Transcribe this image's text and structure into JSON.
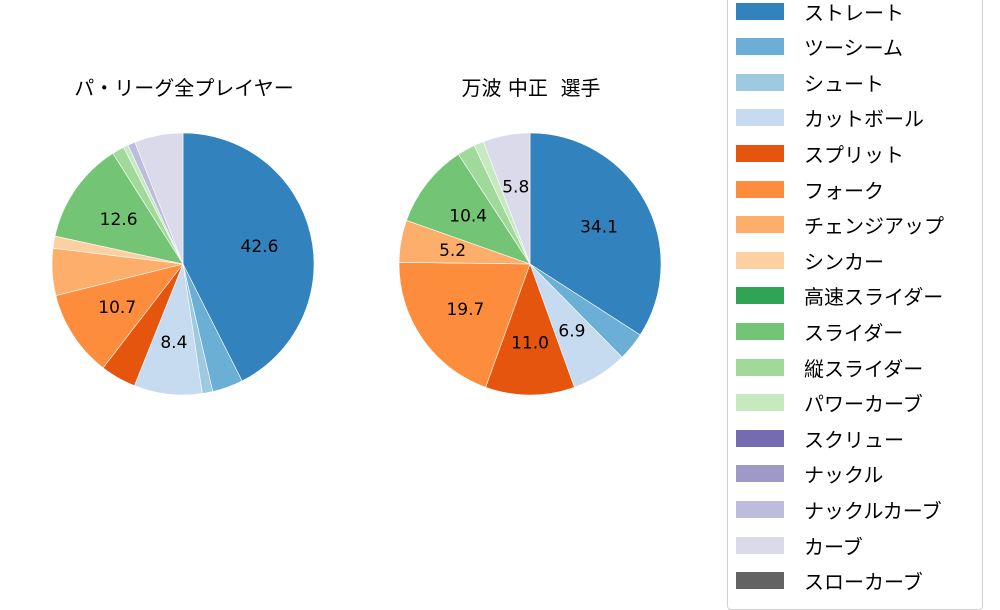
{
  "chart_data": [
    {
      "type": "pie",
      "title": "パ・リーグ全プレイヤー",
      "start_angle": "top, clockwise",
      "categories": [
        "ストレート",
        "ツーシーム",
        "シュート",
        "カットボール",
        "スプリット",
        "フォーク",
        "チェンジアップ",
        "シンカー",
        "スライダー",
        "縦スライダー",
        "パワーカーブ",
        "ナックルカーブ",
        "カーブ"
      ],
      "values": [
        42.6,
        3.8,
        1.3,
        8.4,
        4.4,
        10.7,
        5.8,
        1.5,
        12.6,
        1.5,
        0.6,
        0.9,
        6.0
      ],
      "labels_shown": [
        "42.6",
        "",
        "",
        "8.4",
        "",
        "10.7",
        "",
        "",
        "12.6",
        "",
        "",
        "",
        ""
      ]
    },
    {
      "type": "pie",
      "title": "万波 中正  選手",
      "start_angle": "top, clockwise",
      "categories": [
        "ストレート",
        "ツーシーム",
        "カットボール",
        "スプリット",
        "フォーク",
        "チェンジアップ",
        "スライダー",
        "縦スライダー",
        "パワーカーブ",
        "カーブ"
      ],
      "values": [
        34.1,
        3.5,
        6.9,
        11.0,
        19.7,
        5.2,
        10.4,
        2.2,
        1.2,
        5.8
      ],
      "labels_shown": [
        "34.1",
        "",
        "6.9",
        "11.0",
        "19.7",
        "5.2",
        "10.4",
        "",
        "",
        "5.8"
      ]
    }
  ],
  "colors": {
    "ストレート": "#3182bd",
    "ツーシーム": "#6baed6",
    "シュート": "#9ecae1",
    "カットボール": "#c6dbef",
    "スプリット": "#e6550d",
    "フォーク": "#fd8d3c",
    "チェンジアップ": "#fdae6b",
    "シンカー": "#fdd0a2",
    "高速スライダー": "#31a354",
    "スライダー": "#74c476",
    "縦スライダー": "#a1d99b",
    "パワーカーブ": "#c7e9c0",
    "スクリュー": "#756bb1",
    "ナックル": "#9e9ac8",
    "ナックルカーブ": "#bcbddc",
    "カーブ": "#dadaeb",
    "スローカーブ": "#636363"
  },
  "legend": {
    "items": [
      {
        "label": "ストレート",
        "color": "#3182bd"
      },
      {
        "label": "ツーシーム",
        "color": "#6baed6"
      },
      {
        "label": "シュート",
        "color": "#9ecae1"
      },
      {
        "label": "カットボール",
        "color": "#c6dbef"
      },
      {
        "label": "スプリット",
        "color": "#e6550d"
      },
      {
        "label": "フォーク",
        "color": "#fd8d3c"
      },
      {
        "label": "チェンジアップ",
        "color": "#fdae6b"
      },
      {
        "label": "シンカー",
        "color": "#fdd0a2"
      },
      {
        "label": "高速スライダー",
        "color": "#31a354"
      },
      {
        "label": "スライダー",
        "color": "#74c476"
      },
      {
        "label": "縦スライダー",
        "color": "#a1d99b"
      },
      {
        "label": "パワーカーブ",
        "color": "#c7e9c0"
      },
      {
        "label": "スクリュー",
        "color": "#756bb1"
      },
      {
        "label": "ナックル",
        "color": "#9e9ac8"
      },
      {
        "label": "ナックルカーブ",
        "color": "#bcbddc"
      },
      {
        "label": "カーブ",
        "color": "#dadaeb"
      },
      {
        "label": "スローカーブ",
        "color": "#636363"
      }
    ]
  },
  "titles": {
    "left": "パ・リーグ全プレイヤー",
    "right": "万波 中正  選手"
  }
}
